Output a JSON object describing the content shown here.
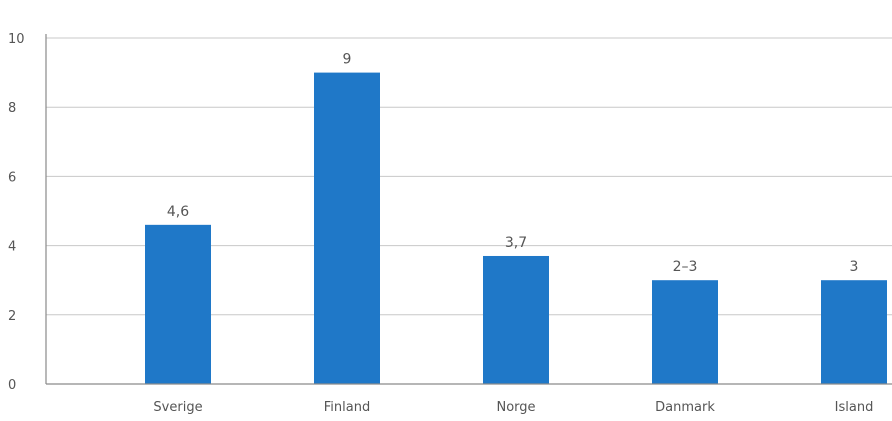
{
  "header": {
    "text": ""
  },
  "chart_data": {
    "type": "bar",
    "categories": [
      "Sverige",
      "Finland",
      "Norge",
      "Danmark",
      "Island"
    ],
    "values": [
      4.6,
      9,
      3.7,
      3,
      3
    ],
    "data_labels": [
      "4,6",
      "9",
      "3,7",
      "2–3",
      "3"
    ],
    "title": "",
    "xlabel": "",
    "ylabel": "",
    "ylim": [
      0,
      10
    ],
    "yticks": [
      0,
      2,
      4,
      6,
      8,
      10
    ],
    "ytick_labels": [
      "0",
      "2",
      "4",
      "6",
      "8",
      "10"
    ],
    "grid": true,
    "bar_color": "#1f78c8",
    "grid_color": "#c8c8c8"
  }
}
